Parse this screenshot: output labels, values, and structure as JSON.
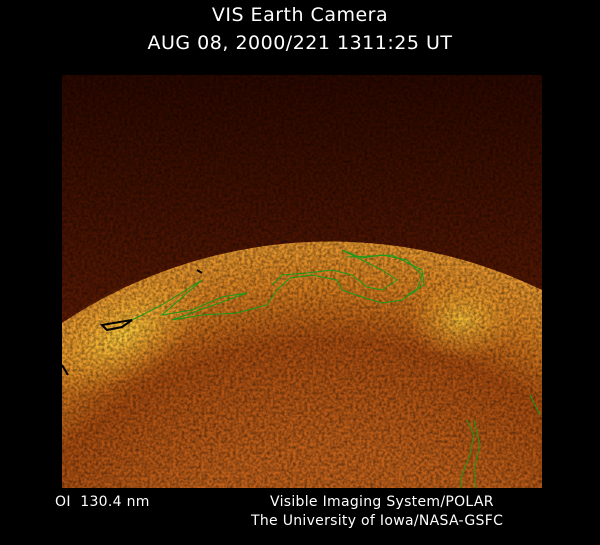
{
  "header": {
    "title": "VIS Earth Camera",
    "timestamp": "AUG 08, 2000/221 1311:25 UT"
  },
  "footer": {
    "wavelength": "OI  130.4 nm",
    "instrument": "Visible Imaging System/POLAR",
    "institution": "The University of Iowa/NASA-GSFC"
  },
  "image": {
    "colors": {
      "background": "#000000",
      "glow": "#ffcc33",
      "disk": "#b05010",
      "space": "#3a0c02",
      "contour": "#1a9a1a"
    }
  }
}
